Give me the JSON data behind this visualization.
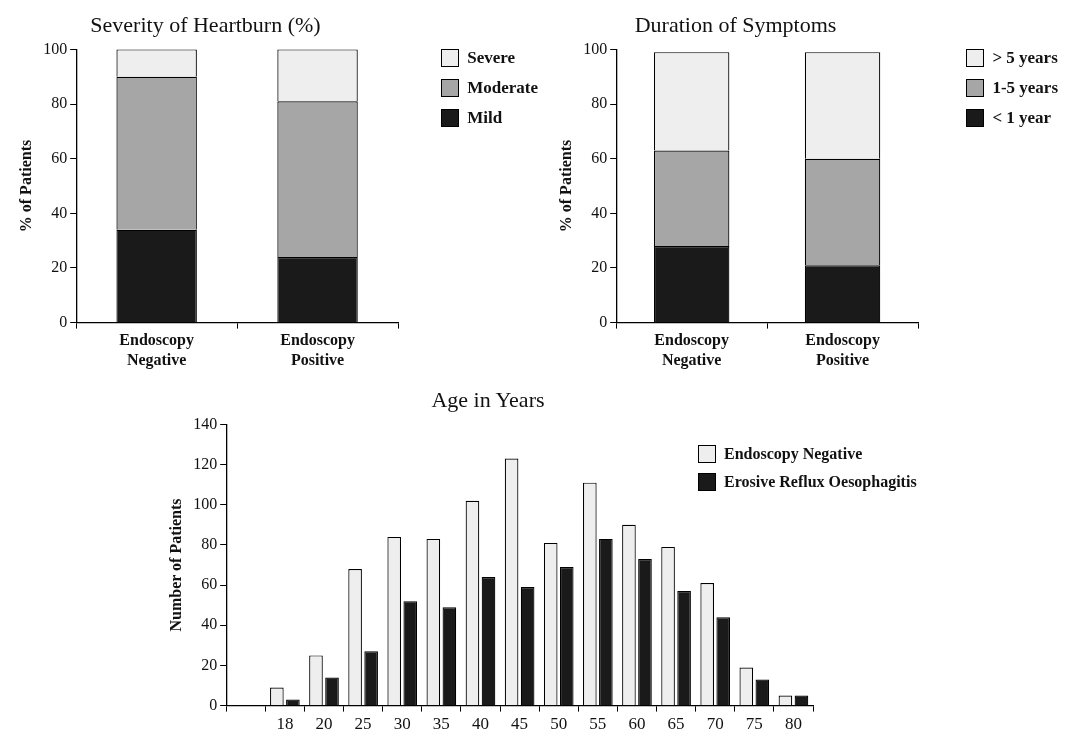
{
  "chart_data": [
    {
      "type": "bar",
      "title": "Severity of Heartburn (%)",
      "ylabel": "% of Patients",
      "categories": [
        "Endoscopy Negative",
        "Endoscopy Positive"
      ],
      "stacked": true,
      "legend": "right",
      "ylim": [
        0,
        100
      ],
      "yticks": [
        0,
        20,
        40,
        60,
        80,
        100
      ],
      "series": [
        {
          "name": "Mild",
          "color": "#1a1a1a",
          "values": [
            34,
            24
          ]
        },
        {
          "name": "Moderate",
          "color": "#a6a6a6",
          "values": [
            56,
            57
          ]
        },
        {
          "name": "Severe",
          "color": "#eeeeee",
          "values": [
            10,
            19
          ]
        }
      ]
    },
    {
      "type": "bar",
      "title": "Duration of Symptoms",
      "ylabel": "% of Patients",
      "categories": [
        "Endoscopy Negative",
        "Endoscopy Positive"
      ],
      "stacked": true,
      "legend": "right",
      "ylim": [
        0,
        100
      ],
      "yticks": [
        0,
        20,
        40,
        60,
        80,
        100
      ],
      "series": [
        {
          "name": "< 1 year",
          "color": "#1a1a1a",
          "values": [
            28,
            21
          ]
        },
        {
          "name": "1-5 years",
          "color": "#a6a6a6",
          "values": [
            35,
            39
          ]
        },
        {
          "name": "> 5 years",
          "color": "#eeeeee",
          "values": [
            36,
            39
          ]
        }
      ]
    },
    {
      "type": "bar",
      "title": "Age in Years",
      "ylabel": "Number of Patients",
      "categories": [
        null,
        "18",
        "20",
        "25",
        "30",
        "35",
        "40",
        "45",
        "50",
        "55",
        "60",
        "65",
        "70",
        "75",
        "80"
      ],
      "legend": "top right",
      "ylim": [
        0,
        140
      ],
      "yticks": [
        0,
        20,
        40,
        60,
        80,
        100,
        120,
        140
      ],
      "series": [
        {
          "name": "Endoscopy Negative",
          "color": "#eeeeee",
          "values": [
            null,
            9,
            25,
            68,
            84,
            83,
            102,
            123,
            81,
            111,
            90,
            79,
            61,
            19,
            5
          ]
        },
        {
          "name": "Erosive Reflux Oesophagitis",
          "color": "#1a1a1a",
          "values": [
            null,
            3,
            14,
            27,
            52,
            49,
            64,
            59,
            69,
            83,
            73,
            57,
            44,
            13,
            5
          ]
        }
      ]
    }
  ]
}
